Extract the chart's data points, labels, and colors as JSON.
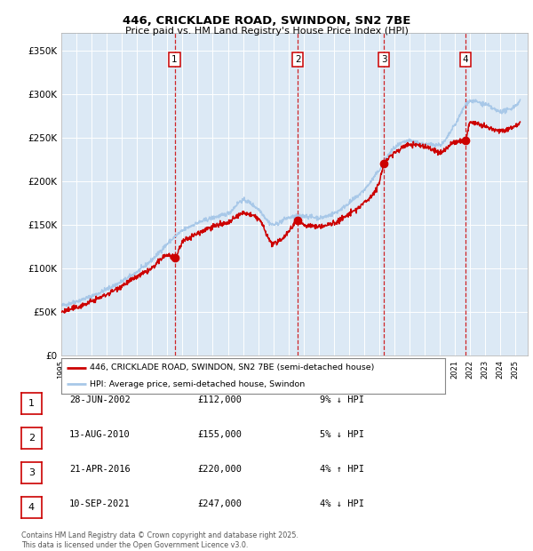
{
  "title1": "446, CRICKLADE ROAD, SWINDON, SN2 7BE",
  "title2": "Price paid vs. HM Land Registry's House Price Index (HPI)",
  "bg_color": "#dce9f5",
  "hpi_line_color": "#a8c8e8",
  "price_line_color": "#cc0000",
  "grid_color": "#ffffff",
  "sale_marker_color": "#cc0000",
  "dashed_line_color": "#cc0000",
  "ylim": [
    0,
    370000
  ],
  "yticks": [
    0,
    50000,
    100000,
    150000,
    200000,
    250000,
    300000,
    350000
  ],
  "xlim_start": 1995.0,
  "xlim_end": 2025.8,
  "sales": [
    {
      "num": 1,
      "year": 2002.48,
      "price": 112000
    },
    {
      "num": 2,
      "year": 2010.62,
      "price": 155000
    },
    {
      "num": 3,
      "year": 2016.3,
      "price": 220000
    },
    {
      "num": 4,
      "year": 2021.7,
      "price": 247000
    }
  ],
  "legend_entries": [
    "446, CRICKLADE ROAD, SWINDON, SN2 7BE (semi-detached house)",
    "HPI: Average price, semi-detached house, Swindon"
  ],
  "footer": "Contains HM Land Registry data © Crown copyright and database right 2025.\nThis data is licensed under the Open Government Licence v3.0.",
  "table_rows": [
    {
      "num": 1,
      "date": "28-JUN-2002",
      "price": "£112,000",
      "pct": "9% ↓ HPI"
    },
    {
      "num": 2,
      "date": "13-AUG-2010",
      "price": "£155,000",
      "pct": "5% ↓ HPI"
    },
    {
      "num": 3,
      "date": "21-APR-2016",
      "price": "£220,000",
      "pct": "4% ↑ HPI"
    },
    {
      "num": 4,
      "date": "10-SEP-2021",
      "price": "£247,000",
      "pct": "4% ↓ HPI"
    }
  ]
}
